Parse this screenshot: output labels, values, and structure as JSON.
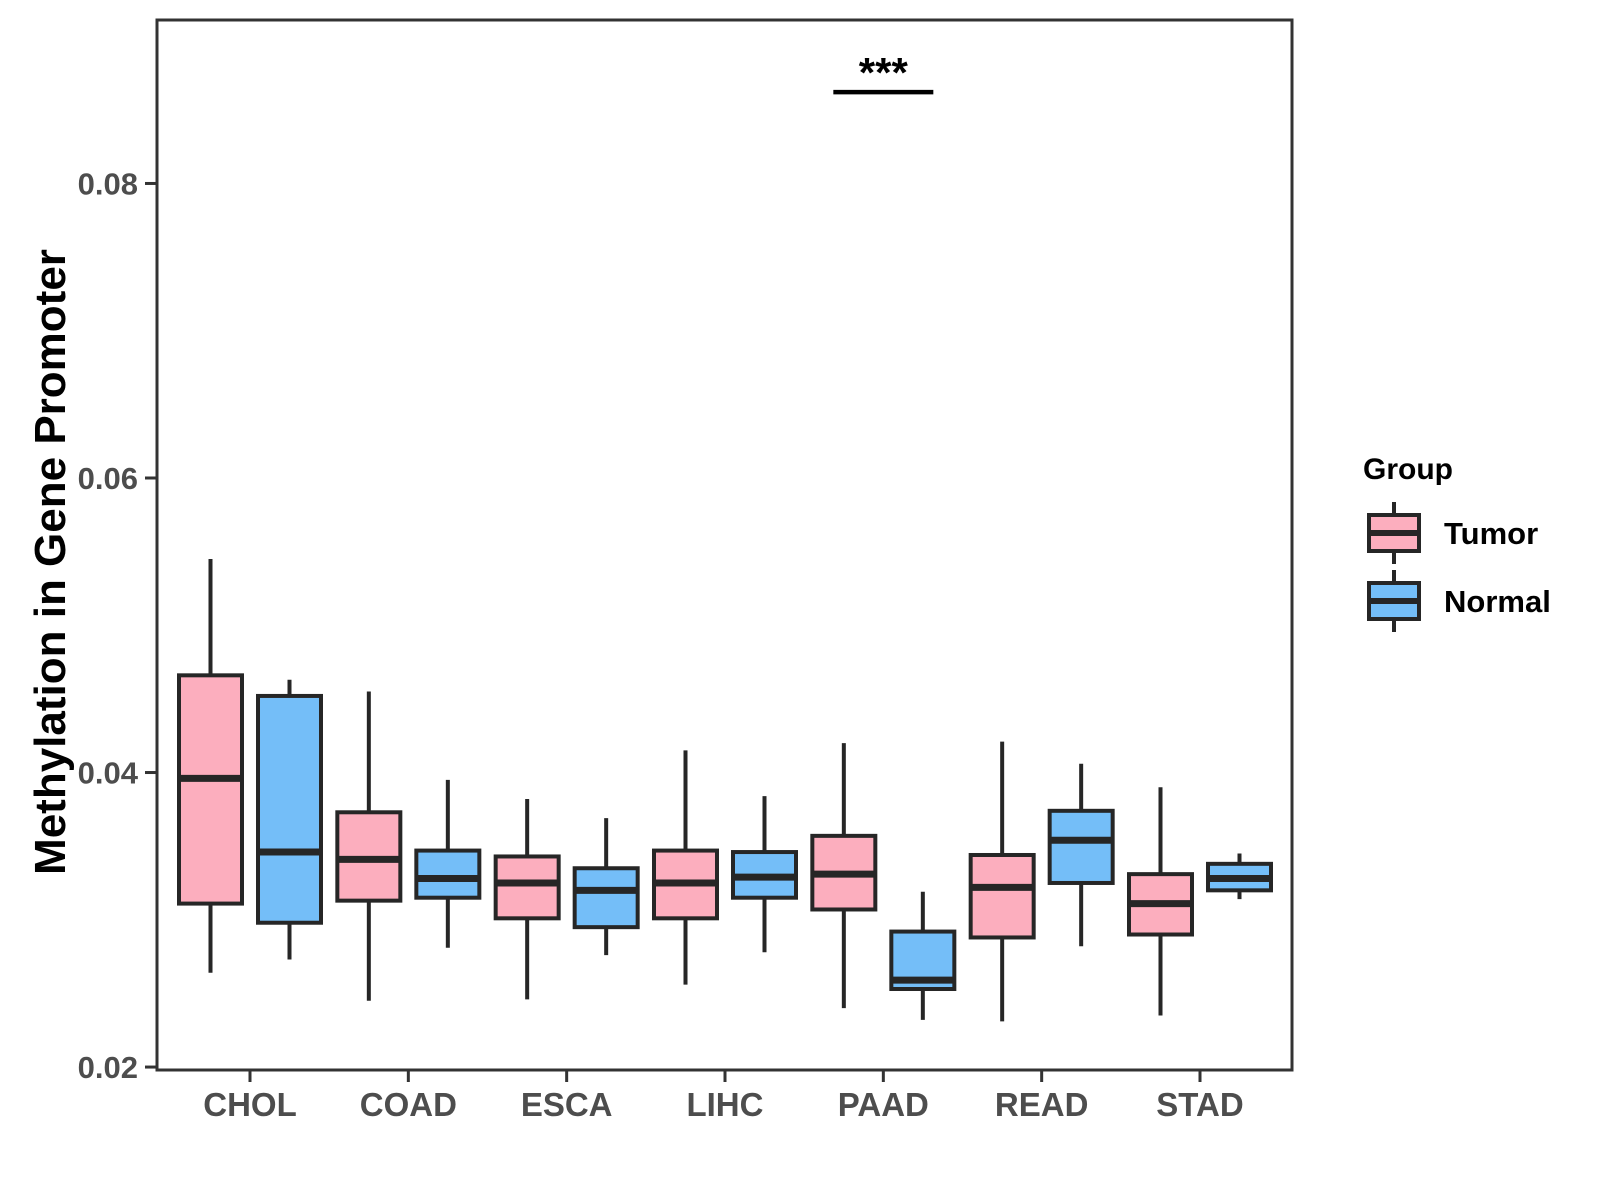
{
  "chart_data": {
    "type": "boxplot",
    "title": "",
    "xlabel": "",
    "ylabel": "Methylation in Gene Promoter",
    "categories": [
      "CHOL",
      "COAD",
      "ESCA",
      "LIHC",
      "PAAD",
      "READ",
      "STAD"
    ],
    "y_ticks": [
      0.02,
      0.04,
      0.06,
      0.08
    ],
    "y_tick_labels": [
      "0.02",
      "0.04",
      "0.06",
      "0.08"
    ],
    "ylim": [
      0.0198,
      0.0911
    ],
    "grid": false,
    "legend_title": "Group",
    "legend_position": "right",
    "groups": [
      {
        "name": "Tumor",
        "fill": "#FCAEBE"
      },
      {
        "name": "Normal",
        "fill": "#74BEF8"
      }
    ],
    "series": [
      {
        "name": "Tumor",
        "boxes": [
          {
            "category": "CHOL",
            "low": 0.0264,
            "q1": 0.0311,
            "median": 0.0396,
            "q3": 0.0466,
            "high": 0.0545
          },
          {
            "category": "COAD",
            "low": 0.0245,
            "q1": 0.0313,
            "median": 0.0341,
            "q3": 0.0373,
            "high": 0.0455
          },
          {
            "category": "ESCA",
            "low": 0.0246,
            "q1": 0.0301,
            "median": 0.0325,
            "q3": 0.0343,
            "high": 0.0382
          },
          {
            "category": "LIHC",
            "low": 0.0256,
            "q1": 0.0301,
            "median": 0.0325,
            "q3": 0.0347,
            "high": 0.0415
          },
          {
            "category": "PAAD",
            "low": 0.024,
            "q1": 0.0307,
            "median": 0.0331,
            "q3": 0.0357,
            "high": 0.042
          },
          {
            "category": "READ",
            "low": 0.0231,
            "q1": 0.0288,
            "median": 0.0322,
            "q3": 0.0344,
            "high": 0.0421
          },
          {
            "category": "STAD",
            "low": 0.0235,
            "q1": 0.029,
            "median": 0.0311,
            "q3": 0.0331,
            "high": 0.039
          }
        ]
      },
      {
        "name": "Normal",
        "boxes": [
          {
            "category": "CHOL",
            "low": 0.0273,
            "q1": 0.0298,
            "median": 0.0346,
            "q3": 0.0452,
            "high": 0.0463
          },
          {
            "category": "COAD",
            "low": 0.0281,
            "q1": 0.0315,
            "median": 0.0328,
            "q3": 0.0347,
            "high": 0.0395
          },
          {
            "category": "ESCA",
            "low": 0.0276,
            "q1": 0.0295,
            "median": 0.032,
            "q3": 0.0335,
            "high": 0.0369
          },
          {
            "category": "LIHC",
            "low": 0.0278,
            "q1": 0.0315,
            "median": 0.0329,
            "q3": 0.0346,
            "high": 0.0384
          },
          {
            "category": "PAAD",
            "low": 0.0232,
            "q1": 0.0253,
            "median": 0.0259,
            "q3": 0.0292,
            "high": 0.0319
          },
          {
            "category": "READ",
            "low": 0.0282,
            "q1": 0.0325,
            "median": 0.0354,
            "q3": 0.0374,
            "high": 0.0406
          },
          {
            "category": "STAD",
            "low": 0.0314,
            "q1": 0.032,
            "median": 0.0328,
            "q3": 0.0338,
            "high": 0.0345
          }
        ]
      }
    ],
    "annotations": [
      {
        "label": "***",
        "category": "PAAD",
        "bar_y": 0.0862
      }
    ],
    "styles": {
      "box_outline": "#262626",
      "panel_border": "#333333",
      "tick_text": "#4D4D4D",
      "axis_title_color": "#000000"
    }
  }
}
